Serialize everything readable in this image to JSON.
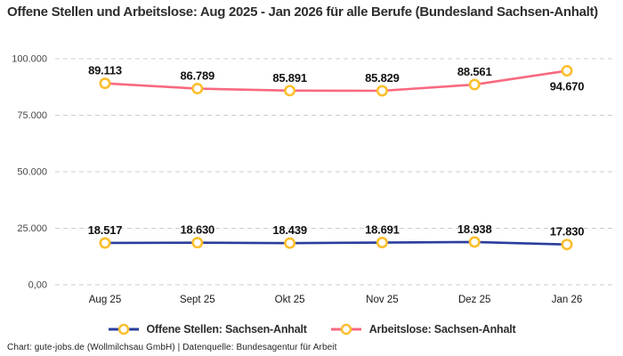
{
  "title": "Offene Stellen und Arbeitslose: Aug 2025 - Jan 2026 für alle Berufe (Bundesland Sachsen-Anhalt)",
  "footer": "Chart: gute-jobs.de (Wollmilchsau GmbH) | Datenquelle: Bundesagentur für Arbeit",
  "colors": {
    "offene_stellen_line": "#2b3d9d",
    "arbeitslose_line": "#f8697f",
    "marker_stroke": "#fcbe2d",
    "marker_fill": "#ffffff",
    "grid": "#cccccc",
    "title_text": "#2e2e2e"
  },
  "legend": [
    {
      "label": "Offene Stellen: Sachsen-Anhalt",
      "color": "#2b3d9d"
    },
    {
      "label": "Arbeitslose: Sachsen-Anhalt",
      "color": "#f8697f"
    }
  ],
  "chart_data": {
    "type": "line",
    "categories": [
      "Aug 25",
      "Sept 25",
      "Okt 25",
      "Nov 25",
      "Dez 25",
      "Jan 26"
    ],
    "series": [
      {
        "name": "Offene Stellen: Sachsen-Anhalt",
        "color": "#2b3d9d",
        "values": [
          18517,
          18630,
          18439,
          18691,
          18938,
          17830
        ],
        "labels": [
          "18.517",
          "18.630",
          "18.439",
          "18.691",
          "18.938",
          "17.830"
        ]
      },
      {
        "name": "Arbeitslose: Sachsen-Anhalt",
        "color": "#f8697f",
        "values": [
          89113,
          86789,
          85891,
          85829,
          88561,
          94670
        ],
        "labels": [
          "89.113",
          "86.789",
          "85.891",
          "85.829",
          "88.561",
          "94.670"
        ]
      }
    ],
    "y_axis": {
      "range": [
        0,
        100000
      ],
      "ticks": [
        0,
        25000,
        50000,
        75000,
        100000
      ],
      "tick_labels": [
        "0,00",
        "25.000",
        "50.000",
        "75.000",
        "100.000"
      ]
    },
    "grid": "dashed horizontal",
    "legend_position": "bottom",
    "marker_style": "white circle with yellow ring"
  }
}
